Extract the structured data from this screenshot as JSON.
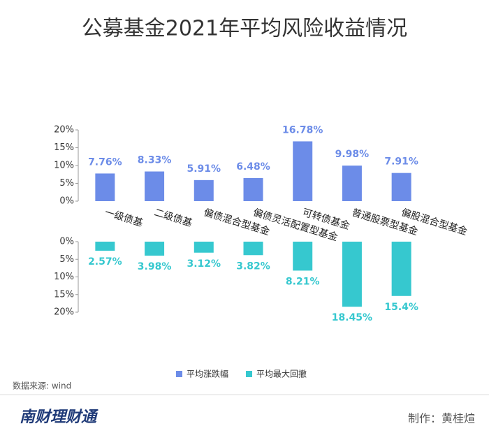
{
  "title": "公募基金2021年平均风险收益情况",
  "chart_data": [
    {
      "type": "bar",
      "categories": [
        "一级债基",
        "二级债基",
        "偏债混合型基金",
        "偏债灵活配置型基金",
        "可转债基金",
        "普通股票型基金",
        "偏股混合型基金"
      ],
      "series": [
        {
          "name": "平均涨跌幅",
          "color": "#6c8ce8",
          "values": [
            7.76,
            8.33,
            5.91,
            6.48,
            16.78,
            9.98,
            7.91
          ],
          "value_labels": [
            "7.76%",
            "8.33%",
            "5.91%",
            "6.48%",
            "16.78%",
            "9.98%",
            "7.91%"
          ]
        }
      ],
      "ylim": [
        0,
        20
      ],
      "yticks": [
        {
          "value": 0,
          "label": "0%"
        },
        {
          "value": 5,
          "label": "5%"
        },
        {
          "value": 10,
          "label": "10%"
        },
        {
          "value": 15,
          "label": "15%"
        },
        {
          "value": 20,
          "label": "20%"
        }
      ]
    },
    {
      "type": "bar",
      "inverted": true,
      "series": [
        {
          "name": "平均最大回撤",
          "color": "#36c8cf",
          "values": [
            2.57,
            3.98,
            3.12,
            3.82,
            8.21,
            18.45,
            15.4
          ],
          "value_labels": [
            "2.57%",
            "3.98%",
            "3.12%",
            "3.82%",
            "8.21%",
            "18.45%",
            "15.4%"
          ]
        }
      ],
      "ylim": [
        0,
        20
      ],
      "yticks": [
        {
          "value": 0,
          "label": "0%"
        },
        {
          "value": 5,
          "label": "5%"
        },
        {
          "value": 10,
          "label": "10%"
        },
        {
          "value": 15,
          "label": "15%"
        },
        {
          "value": 20,
          "label": "20%"
        }
      ]
    }
  ],
  "source": "数据来源: wind",
  "logo": "南财理财通",
  "credit": "制作：黄桂煊"
}
